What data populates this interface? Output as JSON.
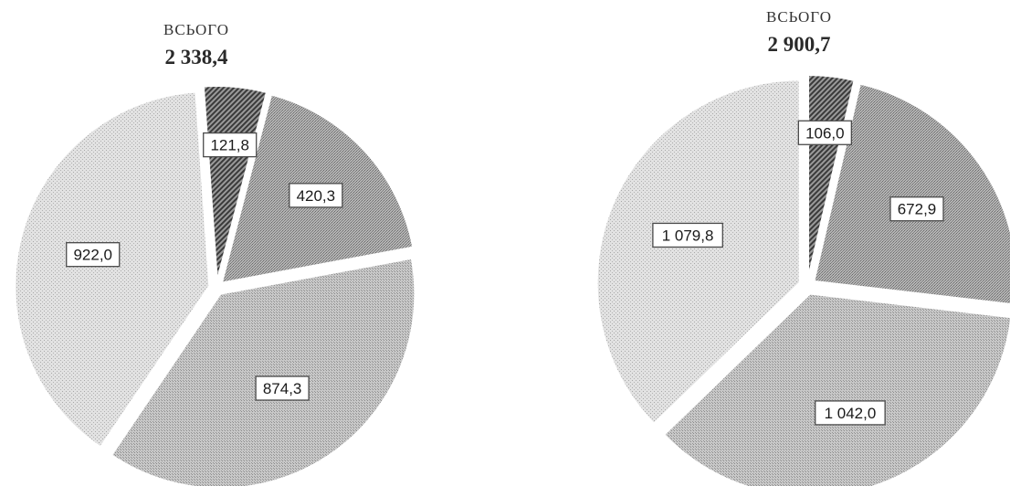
{
  "chart_data": [
    {
      "type": "pie",
      "total_label": "ВСЬОГО",
      "total_value": "2 338,4",
      "slices": [
        {
          "value": 121.8,
          "label": "121,8",
          "fill": "stripe"
        },
        {
          "value": 420.3,
          "label": "420,3",
          "fill": "dark"
        },
        {
          "value": 874.3,
          "label": "874,3",
          "fill": "medium"
        },
        {
          "value": 922.0,
          "label": "922,0",
          "fill": "light"
        }
      ],
      "start_angle_deg": 356
    },
    {
      "type": "pie",
      "total_label": "ВСЬОГО",
      "total_value": "2 900,7",
      "slices": [
        {
          "value": 106.0,
          "label": "106,0",
          "fill": "stripe"
        },
        {
          "value": 672.9,
          "label": "672,9",
          "fill": "dark"
        },
        {
          "value": 1042.0,
          "label": "1 042,0",
          "fill": "medium"
        },
        {
          "value": 1079.8,
          "label": "1 079,8",
          "fill": "light"
        }
      ],
      "start_angle_deg": 0
    }
  ],
  "colors": {
    "stripe": "#6e6e6e",
    "dark": "#a6a6a6",
    "medium": "#bdbdbd",
    "light": "#dadada"
  }
}
